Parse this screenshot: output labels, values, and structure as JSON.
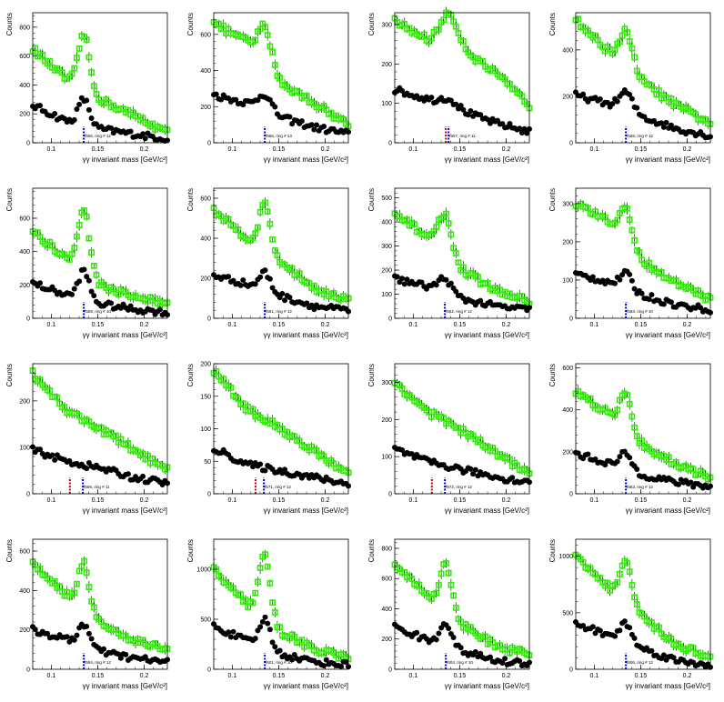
{
  "chart_data": [
    {
      "type": "scatter",
      "annotation": "f555, ring # 12",
      "xlabel": "γγ invariant mass [GeV/c²]",
      "ylabel": "Counts",
      "xlim": [
        0.08,
        0.225
      ],
      "ylim": [
        0,
        900
      ],
      "yticks": [
        0,
        200,
        400,
        600,
        800
      ],
      "xticks": [
        0.1,
        0.15,
        0.2
      ],
      "xticklabels": [
        "0.1",
        "0.15",
        "0.2"
      ],
      "peak": 0.135,
      "width": 0.006,
      "marker_lines": [
        0.135
      ],
      "series": [
        {
          "color": "#2ef000",
          "type": "signal",
          "base": [
            650,
            440,
            300,
            190,
            70
          ],
          "amp": 380
        },
        {
          "color": "#000000",
          "type": "background",
          "base": [
            260,
            150,
            95,
            60,
            28
          ],
          "amp": 180
        }
      ]
    },
    {
      "type": "scatter",
      "annotation": "f556, ring # 13",
      "xlabel": "γγ invariant mass [GeV/c²]",
      "ylabel": "Counts",
      "xlim": [
        0.08,
        0.225
      ],
      "ylim": [
        0,
        720
      ],
      "yticks": [
        0,
        200,
        400,
        600
      ],
      "xticks": [
        0.1,
        0.15,
        0.2
      ],
      "xticklabels": [
        "0.1",
        "0.15",
        "0.2"
      ],
      "peak": 0.135,
      "width": 0.007,
      "marker_lines": [
        0.135
      ],
      "series": [
        {
          "color": "#2ef000",
          "type": "signal",
          "base": [
            660,
            560,
            330,
            220,
            100
          ],
          "amp": 200
        },
        {
          "color": "#000000",
          "type": "background",
          "base": [
            265,
            220,
            140,
            85,
            50
          ],
          "amp": 90
        }
      ]
    },
    {
      "type": "scatter",
      "annotation": "f557, ring # 11",
      "xlabel": "γγ invariant mass [GeV/c²]",
      "ylabel": "Counts",
      "xlim": [
        0.08,
        0.225
      ],
      "ylim": [
        0,
        330
      ],
      "yticks": [
        0,
        100,
        200,
        300
      ],
      "xticks": [
        0.1,
        0.15,
        0.2
      ],
      "xticklabels": [
        "0.1",
        "0.15",
        "0.2"
      ],
      "peak": 0.138,
      "width": 0.009,
      "marker_lines": [
        0.135,
        0.138
      ],
      "series": [
        {
          "color": "#2ef000",
          "type": "signal",
          "base": [
            310,
            260,
            240,
            175,
            95
          ],
          "amp": 80
        },
        {
          "color": "#000000",
          "type": "background",
          "base": [
            135,
            110,
            80,
            50,
            28
          ],
          "amp": 20
        }
      ]
    },
    {
      "type": "scatter",
      "annotation": "f558, ring # 12",
      "xlabel": "γγ invariant mass [GeV/c²]",
      "ylabel": "Counts",
      "xlim": [
        0.08,
        0.225
      ],
      "ylim": [
        0,
        560
      ],
      "yticks": [
        0,
        200,
        400
      ],
      "xticks": [
        0.1,
        0.15,
        0.2
      ],
      "xticklabels": [
        "0.1",
        "0.15",
        "0.2"
      ],
      "peak": 0.134,
      "width": 0.007,
      "marker_lines": [
        0.134
      ],
      "series": [
        {
          "color": "#2ef000",
          "type": "signal",
          "base": [
            530,
            390,
            260,
            160,
            85
          ],
          "amp": 150
        },
        {
          "color": "#000000",
          "type": "background",
          "base": [
            205,
            165,
            110,
            60,
            30
          ],
          "amp": 80
        }
      ]
    },
    {
      "type": "scatter",
      "annotation": "f559, ring # 10",
      "xlabel": "γγ invariant mass [GeV/c²]",
      "ylabel": "Counts",
      "xlim": [
        0.08,
        0.225
      ],
      "ylim": [
        0,
        780
      ],
      "yticks": [
        0,
        200,
        400,
        600
      ],
      "xticks": [
        0.1,
        0.15,
        0.2
      ],
      "xticklabels": [
        "0.1",
        "0.15",
        "0.2"
      ],
      "peak": 0.135,
      "width": 0.006,
      "marker_lines": [
        0.135
      ],
      "series": [
        {
          "color": "#2ef000",
          "type": "signal",
          "base": [
            520,
            360,
            200,
            130,
            90
          ],
          "amp": 380
        },
        {
          "color": "#000000",
          "type": "background",
          "base": [
            210,
            140,
            85,
            55,
            35
          ],
          "amp": 170
        }
      ]
    },
    {
      "type": "scatter",
      "annotation": "f561, ring # 12",
      "xlabel": "γγ invariant mass [GeV/c²]",
      "ylabel": "Counts",
      "xlim": [
        0.08,
        0.225
      ],
      "ylim": [
        0,
        650
      ],
      "yticks": [
        0,
        200,
        400,
        600
      ],
      "xticks": [
        0.1,
        0.15,
        0.2
      ],
      "xticklabels": [
        "0.1",
        "0.15",
        "0.2"
      ],
      "peak": 0.135,
      "width": 0.006,
      "marker_lines": [
        0.135
      ],
      "series": [
        {
          "color": "#2ef000",
          "type": "signal",
          "base": [
            540,
            400,
            280,
            150,
            90
          ],
          "amp": 230
        },
        {
          "color": "#000000",
          "type": "background",
          "base": [
            215,
            170,
            110,
            60,
            38
          ],
          "amp": 90
        }
      ]
    },
    {
      "type": "scatter",
      "annotation": "f562, ring # 12",
      "xlabel": "γγ invariant mass [GeV/c²]",
      "ylabel": "Counts",
      "xlim": [
        0.08,
        0.225
      ],
      "ylim": [
        0,
        540
      ],
      "yticks": [
        0,
        100,
        200,
        300,
        400,
        500
      ],
      "xticks": [
        0.1,
        0.15,
        0.2
      ],
      "xticklabels": [
        "0.1",
        "0.15",
        "0.2"
      ],
      "peak": 0.134,
      "width": 0.007,
      "marker_lines": [
        0.134
      ],
      "series": [
        {
          "color": "#2ef000",
          "type": "signal",
          "base": [
            430,
            340,
            200,
            115,
            70
          ],
          "amp": 160
        },
        {
          "color": "#000000",
          "type": "background",
          "base": [
            165,
            130,
            80,
            50,
            35
          ],
          "amp": 60
        }
      ]
    },
    {
      "type": "scatter",
      "annotation": "f563, ring # 10",
      "xlabel": "γγ invariant mass [GeV/c²]",
      "ylabel": "Counts",
      "xlim": [
        0.08,
        0.225
      ],
      "ylim": [
        0,
        340
      ],
      "yticks": [
        0,
        100,
        200,
        300
      ],
      "xticks": [
        0.1,
        0.15,
        0.2
      ],
      "xticklabels": [
        "0.1",
        "0.15",
        "0.2"
      ],
      "peak": 0.134,
      "width": 0.006,
      "marker_lines": [
        0.134
      ],
      "series": [
        {
          "color": "#2ef000",
          "type": "signal",
          "base": [
            300,
            250,
            150,
            90,
            50
          ],
          "amp": 90
        },
        {
          "color": "#000000",
          "type": "background",
          "base": [
            115,
            95,
            60,
            35,
            22
          ],
          "amp": 40
        }
      ]
    },
    {
      "type": "scatter",
      "annotation": "f569, ring # 11",
      "xlabel": "γγ invariant mass [GeV/c²]",
      "ylabel": "Counts",
      "xlim": [
        0.08,
        0.225
      ],
      "ylim": [
        0,
        280
      ],
      "yticks": [
        0,
        100,
        200
      ],
      "xticks": [
        0.1,
        0.15,
        0.2
      ],
      "xticklabels": [
        "0.1",
        "0.15",
        "0.2"
      ],
      "peak": 0.134,
      "width": 0.006,
      "marker_lines": [
        0.12,
        0.134
      ],
      "series": [
        {
          "color": "#2ef000",
          "type": "signal",
          "base": [
            260,
            180,
            140,
            95,
            50
          ],
          "amp": 0
        },
        {
          "color": "#000000",
          "type": "background",
          "base": [
            95,
            70,
            55,
            35,
            22
          ],
          "amp": 0
        }
      ]
    },
    {
      "type": "scatter",
      "annotation": "f571, ring # 12",
      "xlabel": "γγ invariant mass [GeV/c²]",
      "ylabel": "Counts",
      "xlim": [
        0.08,
        0.225
      ],
      "ylim": [
        0,
        200
      ],
      "yticks": [
        0,
        50,
        100,
        150,
        200
      ],
      "xticks": [
        0.1,
        0.15,
        0.2
      ],
      "xticklabels": [
        "0.1",
        "0.15",
        "0.2"
      ],
      "peak": 0.134,
      "width": 0.006,
      "marker_lines": [
        0.125,
        0.134
      ],
      "series": [
        {
          "color": "#2ef000",
          "type": "signal",
          "base": [
            190,
            130,
            100,
            65,
            28
          ],
          "amp": 0
        },
        {
          "color": "#000000",
          "type": "background",
          "base": [
            70,
            45,
            35,
            25,
            15
          ],
          "amp": 0
        }
      ]
    },
    {
      "type": "scatter",
      "annotation": "f572, ring # 12",
      "xlabel": "γγ invariant mass [GeV/c²]",
      "ylabel": "Counts",
      "xlim": [
        0.08,
        0.225
      ],
      "ylim": [
        0,
        350
      ],
      "yticks": [
        0,
        100,
        200,
        300
      ],
      "xticks": [
        0.1,
        0.15,
        0.2
      ],
      "xticklabels": [
        "0.1",
        "0.15",
        "0.2"
      ],
      "peak": 0.134,
      "width": 0.006,
      "marker_lines": [
        0.12,
        0.134
      ],
      "series": [
        {
          "color": "#2ef000",
          "type": "signal",
          "base": [
            300,
            220,
            170,
            110,
            55
          ],
          "amp": 0
        },
        {
          "color": "#000000",
          "type": "background",
          "base": [
            120,
            85,
            65,
            45,
            30
          ],
          "amp": 0
        }
      ]
    },
    {
      "type": "scatter",
      "annotation": "f583, ring # 12",
      "xlabel": "γγ invariant mass [GeV/c²]",
      "ylabel": "Counts",
      "xlim": [
        0.08,
        0.225
      ],
      "ylim": [
        0,
        620
      ],
      "yticks": [
        0,
        200,
        400,
        600
      ],
      "xticks": [
        0.1,
        0.15,
        0.2
      ],
      "xticklabels": [
        "0.1",
        "0.15",
        "0.2"
      ],
      "peak": 0.134,
      "width": 0.006,
      "marker_lines": [
        0.134
      ],
      "series": [
        {
          "color": "#2ef000",
          "type": "signal",
          "base": [
            490,
            380,
            230,
            140,
            75
          ],
          "amp": 180
        },
        {
          "color": "#000000",
          "type": "background",
          "base": [
            190,
            145,
            90,
            55,
            35
          ],
          "amp": 75
        }
      ]
    },
    {
      "type": "scatter",
      "annotation": "f584, ring # 12",
      "xlabel": "γγ invariant mass [GeV/c²]",
      "ylabel": "Counts",
      "xlim": [
        0.08,
        0.225
      ],
      "ylim": [
        0,
        660
      ],
      "yticks": [
        0,
        200,
        400,
        600
      ],
      "xticks": [
        0.1,
        0.15,
        0.2
      ],
      "xticklabels": [
        "0.1",
        "0.15",
        "0.2"
      ],
      "peak": 0.135,
      "width": 0.006,
      "marker_lines": [
        0.135
      ],
      "series": [
        {
          "color": "#2ef000",
          "type": "signal",
          "base": [
            540,
            380,
            230,
            150,
            100
          ],
          "amp": 240
        },
        {
          "color": "#000000",
          "type": "background",
          "base": [
            200,
            150,
            90,
            55,
            38
          ],
          "amp": 110
        }
      ]
    },
    {
      "type": "scatter",
      "annotation": "f601, ring # 10",
      "xlabel": "γγ invariant mass [GeV/c²]",
      "ylabel": "Counts",
      "xlim": [
        0.08,
        0.225
      ],
      "ylim": [
        0,
        1300
      ],
      "yticks": [
        0,
        500,
        1000
      ],
      "xticks": [
        0.1,
        0.15,
        0.2
      ],
      "xticklabels": [
        "0.1",
        "0.15",
        "0.2"
      ],
      "peak": 0.135,
      "width": 0.006,
      "marker_lines": [
        0.135
      ],
      "series": [
        {
          "color": "#2ef000",
          "type": "signal",
          "base": [
            1000,
            650,
            370,
            200,
            110
          ],
          "amp": 640
        },
        {
          "color": "#000000",
          "type": "background",
          "base": [
            430,
            280,
            150,
            75,
            45
          ],
          "amp": 290
        }
      ]
    },
    {
      "type": "scatter",
      "annotation": "f604, ring # 10",
      "xlabel": "γγ invariant mass [GeV/c²]",
      "ylabel": "Counts",
      "xlim": [
        0.08,
        0.225
      ],
      "ylim": [
        0,
        860
      ],
      "yticks": [
        0,
        200,
        400,
        600,
        800
      ],
      "xticks": [
        0.1,
        0.15,
        0.2
      ],
      "xticklabels": [
        "0.1",
        "0.15",
        "0.2"
      ],
      "peak": 0.135,
      "width": 0.006,
      "marker_lines": [
        0.135
      ],
      "series": [
        {
          "color": "#2ef000",
          "type": "signal",
          "base": [
            700,
            480,
            300,
            150,
            100
          ],
          "amp": 320
        },
        {
          "color": "#000000",
          "type": "background",
          "base": [
            280,
            190,
            120,
            55,
            38
          ],
          "amp": 160
        }
      ]
    },
    {
      "type": "scatter",
      "annotation": "f606, ring # 12",
      "xlabel": "γγ invariant mass [GeV/c²]",
      "ylabel": "Counts",
      "xlim": [
        0.08,
        0.225
      ],
      "ylim": [
        0,
        1150
      ],
      "yticks": [
        0,
        500,
        1000
      ],
      "xticks": [
        0.1,
        0.15,
        0.2
      ],
      "xticklabels": [
        "0.1",
        "0.15",
        "0.2"
      ],
      "peak": 0.134,
      "width": 0.006,
      "marker_lines": [
        0.134
      ],
      "series": [
        {
          "color": "#2ef000",
          "type": "signal",
          "base": [
            1000,
            720,
            450,
            220,
            110
          ],
          "amp": 370
        },
        {
          "color": "#000000",
          "type": "background",
          "base": [
            400,
            300,
            180,
            75,
            40
          ],
          "amp": 170
        }
      ]
    }
  ]
}
